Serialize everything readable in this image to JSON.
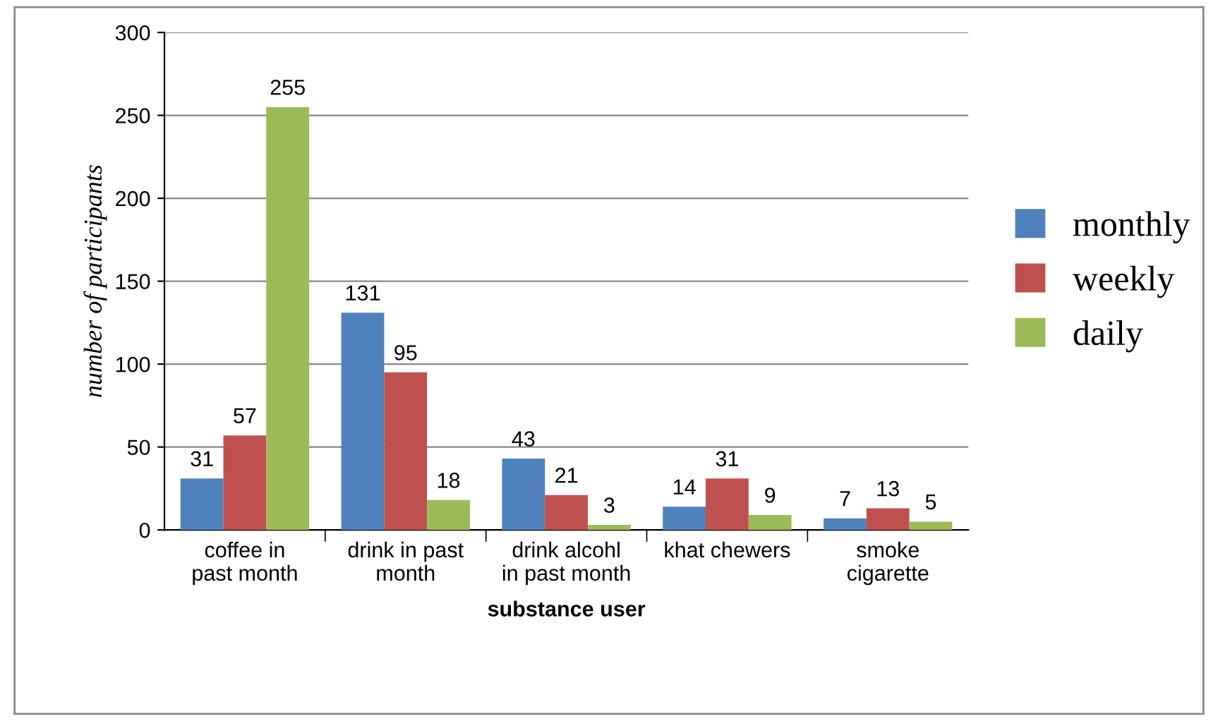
{
  "chart_data": {
    "type": "bar",
    "xlabel": "substance user",
    "ylabel": "number of participants",
    "categories": [
      "coffee in past month",
      "drink in past month",
      "drink alcohl in past month",
      "khat chewers",
      "smoke cigarette"
    ],
    "series": [
      {
        "name": "monthly",
        "color": "#4f81bd",
        "values": [
          31,
          131,
          43,
          14,
          7
        ]
      },
      {
        "name": "weekly",
        "color": "#c0504d",
        "values": [
          57,
          95,
          21,
          31,
          13
        ]
      },
      {
        "name": "daily",
        "color": "#9bbb59",
        "values": [
          255,
          18,
          3,
          9,
          5
        ]
      }
    ],
    "ylim": [
      0,
      300
    ],
    "yticks": [
      0,
      50,
      100,
      150,
      200,
      250,
      300
    ],
    "grid": "y",
    "legend": "right",
    "data_labels": true
  }
}
